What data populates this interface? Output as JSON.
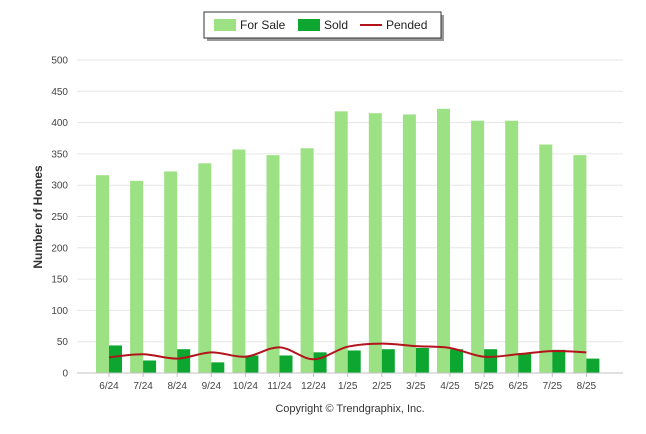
{
  "chart_data": {
    "type": "bar",
    "categories": [
      "6/24",
      "7/24",
      "8/24",
      "9/24",
      "10/24",
      "11/24",
      "12/24",
      "1/25",
      "2/25",
      "3/25",
      "4/25",
      "5/25",
      "6/25",
      "7/25",
      "8/25"
    ],
    "series": [
      {
        "name": "For Sale",
        "type": "bar",
        "color": "#9de185",
        "values": [
          316,
          307,
          322,
          335,
          357,
          348,
          359,
          418,
          415,
          413,
          422,
          403,
          403,
          365,
          348
        ]
      },
      {
        "name": "Sold",
        "type": "bar",
        "color": "#0ca630",
        "values": [
          44,
          20,
          38,
          17,
          28,
          28,
          33,
          36,
          38,
          40,
          38,
          38,
          32,
          37,
          23
        ]
      },
      {
        "name": "Pended",
        "type": "line",
        "color": "#b3131b",
        "values": [
          25,
          30,
          23,
          33,
          26,
          41,
          22,
          42,
          47,
          43,
          40,
          26,
          30,
          35,
          33
        ]
      }
    ],
    "ylabel": "Number of Homes",
    "xlabel": "",
    "ylim": [
      0,
      500
    ],
    "yticks": [
      0,
      50,
      100,
      150,
      200,
      250,
      300,
      350,
      400,
      450,
      500
    ],
    "grid": true,
    "legend_position": "top-center"
  },
  "footer": {
    "copyright": "Copyright © Trendgraphix, Inc."
  }
}
